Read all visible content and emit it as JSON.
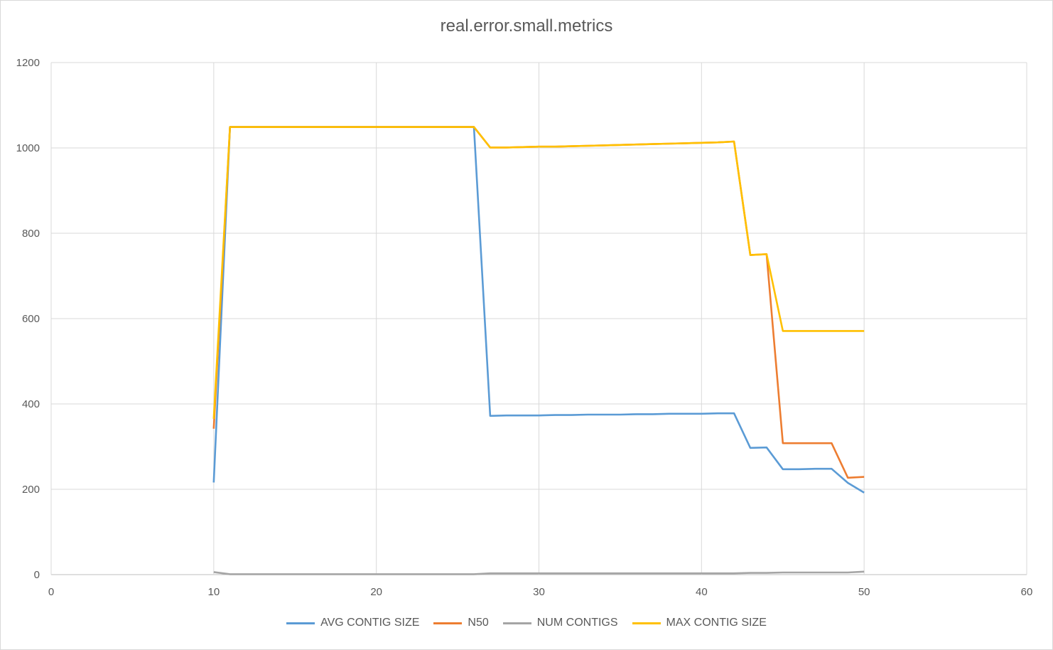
{
  "chart_data": {
    "type": "line",
    "title": "real.error.small.metrics",
    "xlabel": "",
    "ylabel": "",
    "xlim": [
      0,
      60
    ],
    "ylim": [
      0,
      1200
    ],
    "xticks": [
      0,
      10,
      20,
      30,
      40,
      50,
      60
    ],
    "yticks": [
      0,
      200,
      400,
      600,
      800,
      1000,
      1200
    ],
    "grid": true,
    "legend_position": "bottom",
    "x": [
      10,
      11,
      12,
      13,
      14,
      15,
      16,
      17,
      18,
      19,
      20,
      21,
      22,
      23,
      24,
      25,
      26,
      27,
      28,
      29,
      30,
      31,
      32,
      33,
      34,
      35,
      36,
      37,
      38,
      39,
      40,
      41,
      42,
      43,
      44,
      45,
      46,
      47,
      48,
      49,
      50
    ],
    "series": [
      {
        "name": "AVG CONTIG SIZE",
        "color": "#5b9bd5",
        "values": [
          216,
          1049,
          1049,
          1049,
          1049,
          1049,
          1049,
          1049,
          1049,
          1049,
          1049,
          1049,
          1049,
          1049,
          1049,
          1049,
          1049,
          372,
          373,
          373,
          373,
          374,
          374,
          375,
          375,
          375,
          376,
          376,
          377,
          377,
          377,
          378,
          378,
          297,
          298,
          247,
          247,
          248,
          248,
          215,
          192
        ]
      },
      {
        "name": "N50",
        "color": "#ed7d31",
        "values": [
          342,
          1049,
          1049,
          1049,
          1049,
          1049,
          1049,
          1049,
          1049,
          1049,
          1049,
          1049,
          1049,
          1049,
          1049,
          1049,
          1049,
          1001,
          1001,
          1002,
          1003,
          1003,
          1004,
          1005,
          1006,
          1007,
          1008,
          1009,
          1010,
          1011,
          1012,
          1013,
          1015,
          749,
          751,
          308,
          308,
          308,
          308,
          227,
          229
        ]
      },
      {
        "name": "NUM CONTIGS",
        "color": "#a5a5a5",
        "values": [
          6,
          1,
          1,
          1,
          1,
          1,
          1,
          1,
          1,
          1,
          1,
          1,
          1,
          1,
          1,
          1,
          1,
          3,
          3,
          3,
          3,
          3,
          3,
          3,
          3,
          3,
          3,
          3,
          3,
          3,
          3,
          3,
          3,
          4,
          4,
          5,
          5,
          5,
          5,
          5,
          7
        ]
      },
      {
        "name": "MAX CONTIG SIZE",
        "color": "#ffc000",
        "values": [
          365,
          1049,
          1049,
          1049,
          1049,
          1049,
          1049,
          1049,
          1049,
          1049,
          1049,
          1049,
          1049,
          1049,
          1049,
          1049,
          1049,
          1001,
          1001,
          1002,
          1003,
          1003,
          1004,
          1005,
          1006,
          1007,
          1008,
          1009,
          1010,
          1011,
          1012,
          1013,
          1015,
          749,
          751,
          571,
          571,
          571,
          571,
          571,
          571
        ]
      }
    ]
  }
}
